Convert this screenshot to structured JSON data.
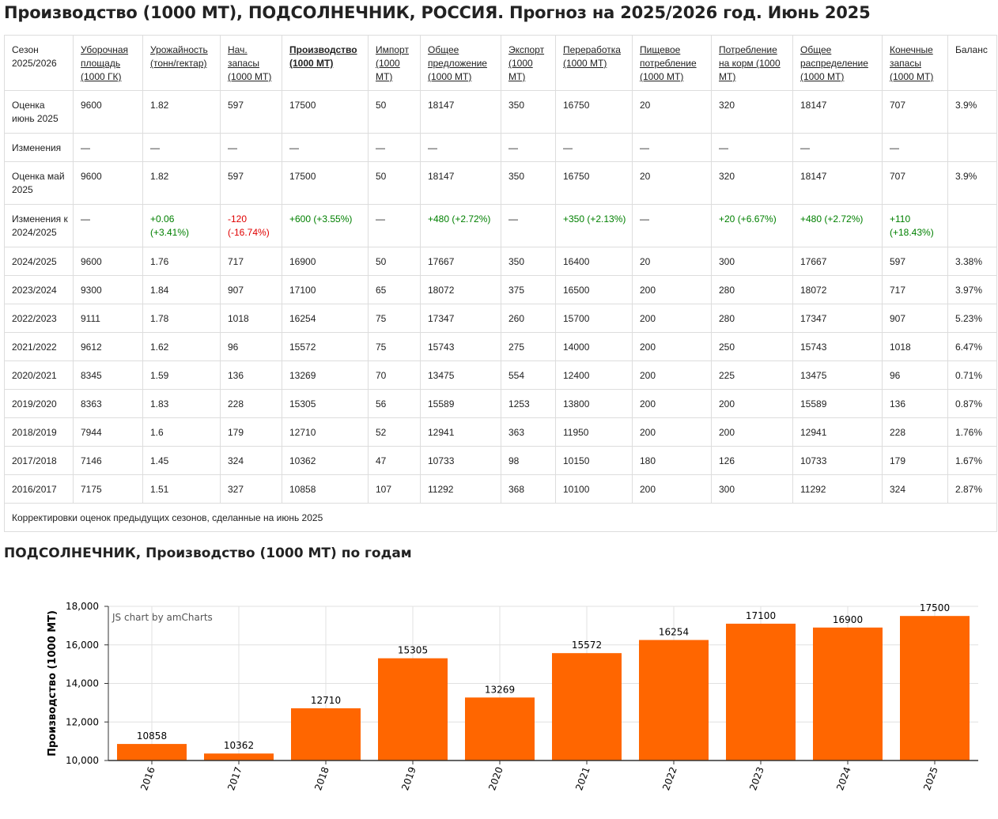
{
  "title": "Производство (1000 МТ), ПОДСОЛНЕЧНИК, РОССИЯ. Прогноз на 2025/2026 год. Июнь 2025",
  "table": {
    "headers": [
      "Сезон 2025/2026",
      "Уборочная площадь (1000 ГК)",
      "Урожайность (тонн/гектар)",
      "Нач. запасы (1000 МТ)",
      "Производство (1000 МТ)",
      "Импорт (1000 МТ)",
      "Общее предложение (1000 МТ)",
      "Экспорт (1000 МТ)",
      "Переработка (1000 МТ)",
      "Пищевое потребление (1000 МТ)",
      "Потребление на корм (1000 МТ)",
      "Общее распределение (1000 МТ)",
      "Конечные запасы (1000 МТ)",
      "Баланс"
    ],
    "rows": [
      [
        "Оценка июнь 2025",
        "9600",
        "1.82",
        "597",
        "17500",
        "50",
        "18147",
        "350",
        "16750",
        "20",
        "320",
        "18147",
        "707",
        "3.9%"
      ],
      [
        "Изменения",
        "—",
        "—",
        "—",
        "—",
        "—",
        "—",
        "—",
        "—",
        "—",
        "—",
        "—",
        "—",
        ""
      ],
      [
        "Оценка май 2025",
        "9600",
        "1.82",
        "597",
        "17500",
        "50",
        "18147",
        "350",
        "16750",
        "20",
        "320",
        "18147",
        "707",
        "3.9%"
      ],
      [
        "Изменения к 2024/2025",
        "—",
        "+0.06 (+3.41%)",
        "-120 (-16.74%)",
        "+600 (+3.55%)",
        "—",
        "+480 (+2.72%)",
        "—",
        "+350 (+2.13%)",
        "—",
        "+20 (+6.67%)",
        "+480 (+2.72%)",
        "+110 (+18.43%)",
        ""
      ],
      [
        "2024/2025",
        "9600",
        "1.76",
        "717",
        "16900",
        "50",
        "17667",
        "350",
        "16400",
        "20",
        "300",
        "17667",
        "597",
        "3.38%"
      ],
      [
        "2023/2024",
        "9300",
        "1.84",
        "907",
        "17100",
        "65",
        "18072",
        "375",
        "16500",
        "200",
        "280",
        "18072",
        "717",
        "3.97%"
      ],
      [
        "2022/2023",
        "9111",
        "1.78",
        "1018",
        "16254",
        "75",
        "17347",
        "260",
        "15700",
        "200",
        "280",
        "17347",
        "907",
        "5.23%"
      ],
      [
        "2021/2022",
        "9612",
        "1.62",
        "96",
        "15572",
        "75",
        "15743",
        "275",
        "14000",
        "200",
        "250",
        "15743",
        "1018",
        "6.47%"
      ],
      [
        "2020/2021",
        "8345",
        "1.59",
        "136",
        "13269",
        "70",
        "13475",
        "554",
        "12400",
        "200",
        "225",
        "13475",
        "96",
        "0.71%"
      ],
      [
        "2019/2020",
        "8363",
        "1.83",
        "228",
        "15305",
        "56",
        "15589",
        "1253",
        "13800",
        "200",
        "200",
        "15589",
        "136",
        "0.87%"
      ],
      [
        "2018/2019",
        "7944",
        "1.6",
        "179",
        "12710",
        "52",
        "12941",
        "363",
        "11950",
        "200",
        "200",
        "12941",
        "228",
        "1.76%"
      ],
      [
        "2017/2018",
        "7146",
        "1.45",
        "324",
        "10362",
        "47",
        "10733",
        "98",
        "10150",
        "180",
        "126",
        "10733",
        "179",
        "1.67%"
      ],
      [
        "2016/2017",
        "7175",
        "1.51",
        "327",
        "10858",
        "107",
        "11292",
        "368",
        "10100",
        "200",
        "300",
        "11292",
        "324",
        "2.87%"
      ]
    ],
    "footnote": "Корректировки оценок предыдущих сезонов, сделанные на июнь 2025"
  },
  "chart_title": "ПОДСОЛНЕЧНИК, Производство (1000 МТ) по годам",
  "chart_data": {
    "type": "bar",
    "categories": [
      "2016",
      "2017",
      "2018",
      "2019",
      "2020",
      "2021",
      "2022",
      "2023",
      "2024",
      "2025"
    ],
    "values": [
      10858,
      10362,
      12710,
      15305,
      13269,
      15572,
      16254,
      17100,
      16900,
      17500
    ],
    "ylabel": "Производство (1000 МТ)",
    "ylim": [
      10000,
      18000
    ],
    "yticks": [
      "10,000",
      "12,000",
      "14,000",
      "16,000",
      "18,000"
    ],
    "ytick_values": [
      10000,
      12000,
      14000,
      16000,
      18000
    ],
    "credit": "JS chart by amCharts",
    "bar_color": "#ff6600",
    "grid": true
  },
  "colors": {
    "positive": "#008000",
    "negative": "#e00000",
    "bar": "#ff6600"
  }
}
